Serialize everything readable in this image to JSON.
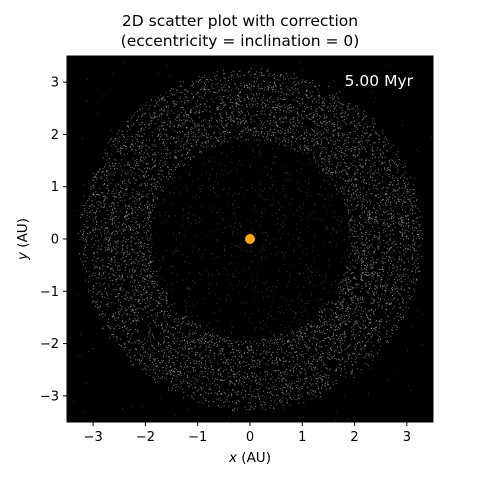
{
  "chart_data": {
    "type": "scatter",
    "title": "2D scatter plot with correction",
    "subtitle": "(eccentricity = inclination = 0)",
    "xlabel_var": "x",
    "xlabel_unit": " (AU)",
    "ylabel_var": "y",
    "ylabel_unit": " (AU)",
    "xlim": [
      -3.5,
      3.5
    ],
    "ylim": [
      -3.5,
      3.5
    ],
    "xticks": [
      -3,
      -2,
      -1,
      0,
      1,
      2,
      3
    ],
    "yticks": [
      -3,
      -2,
      -1,
      0,
      1,
      2,
      3
    ],
    "xtick_labels": [
      "−3",
      "−2",
      "−1",
      "0",
      "1",
      "2",
      "3"
    ],
    "ytick_labels": [
      "−3",
      "−2",
      "−1",
      "0",
      "1",
      "2",
      "3"
    ],
    "annotation": "5.00 Myr",
    "background_color": "#000000",
    "particle_color": "#ffffff",
    "star": {
      "x": 0,
      "y": 0,
      "color": "#ffa500"
    },
    "belt": {
      "inner_radius": 1.9,
      "outer_radius": 3.3,
      "gaps": [
        2.5,
        2.82,
        3.08
      ]
    },
    "interior_sparse_particles": true,
    "grid": false
  }
}
